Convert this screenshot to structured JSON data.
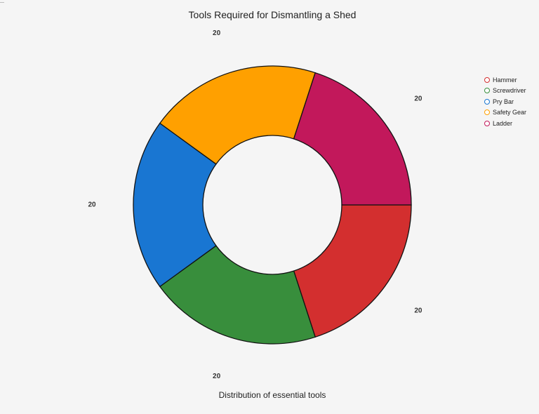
{
  "chart_data": {
    "type": "pie",
    "donut": true,
    "title": "Tools Required for Dismantling a Shed",
    "subtitle": "Distribution of essential tools",
    "categories": [
      "Hammer",
      "Screwdriver",
      "Pry Bar",
      "Safety Gear",
      "Ladder"
    ],
    "values": [
      20,
      20,
      20,
      20,
      20
    ],
    "colors": [
      "#d32f2f",
      "#388e3c",
      "#1976d2",
      "#ffa000",
      "#c2185b"
    ],
    "legend_position": "top-right",
    "data_labels": [
      "20",
      "20",
      "20",
      "20",
      "20"
    ]
  }
}
